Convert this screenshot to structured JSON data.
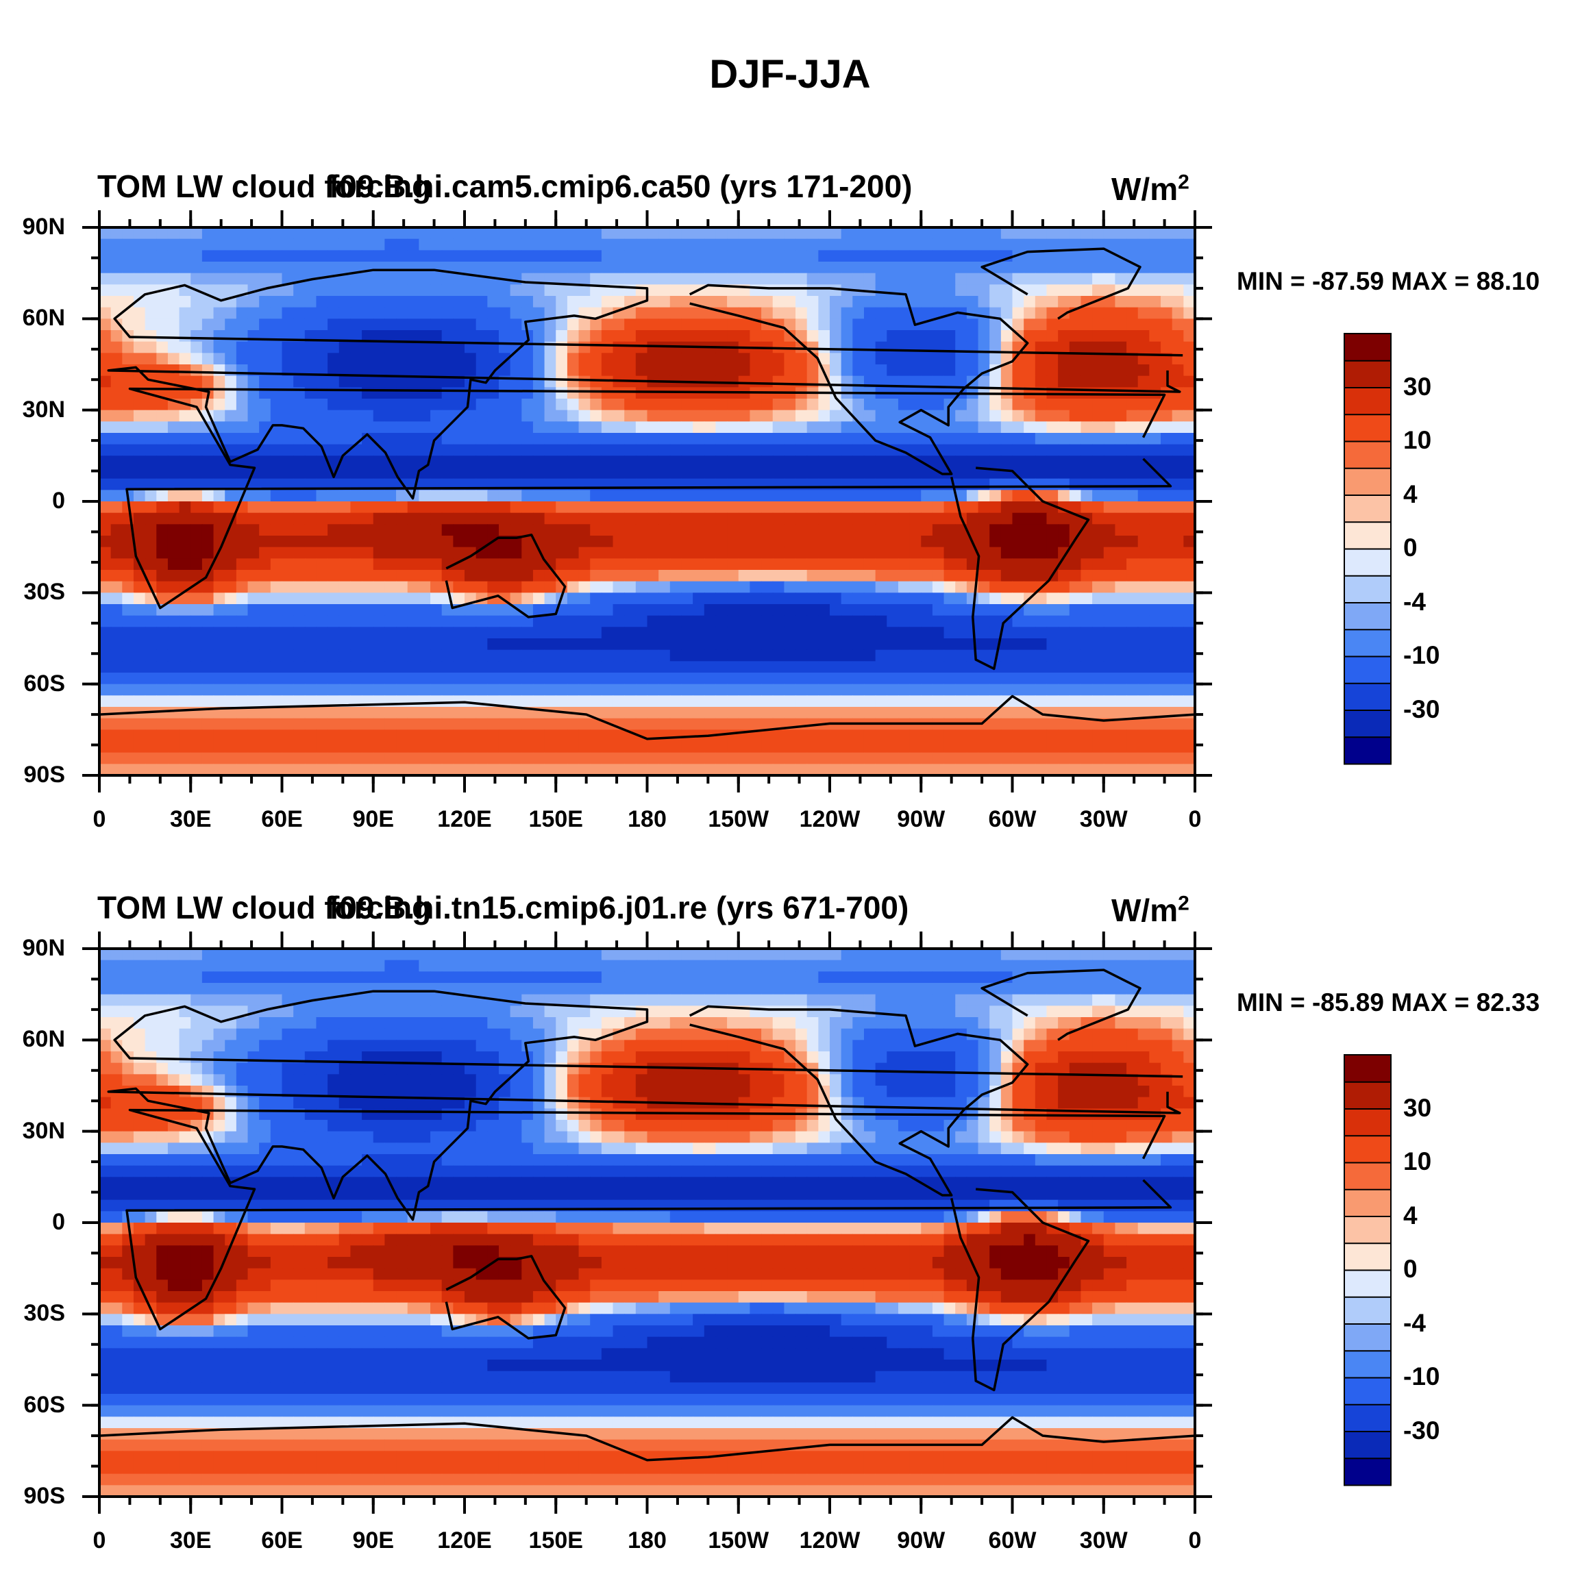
{
  "figure": {
    "main_title": "DJF-JJA"
  },
  "chart_data": [
    {
      "type": "heatmap",
      "title_left": "TOM LW cloud forcing",
      "title_center": "f09.B.hi.cam5.cmip6.ca50 (yrs 171-200)",
      "units_base": "W/m",
      "units_exp": "2",
      "min_value": -87.59,
      "max_value": 88.1,
      "min_label": "MIN = -87.59",
      "max_label": "MAX =  88.10",
      "lat_ticks": [
        "90N",
        "60N",
        "30N",
        "0",
        "30S",
        "60S",
        "90S"
      ],
      "lon_ticks": [
        "0",
        "30E",
        "60E",
        "90E",
        "120E",
        "150E",
        "180",
        "150W",
        "120W",
        "90W",
        "60W",
        "30W",
        "0"
      ],
      "colorbar_labels": [
        "30",
        "10",
        "4",
        "0",
        "-4",
        "-10",
        "-30"
      ]
    },
    {
      "type": "heatmap",
      "title_left": "TOM LW cloud forcing",
      "title_center": "f09.B.hi.tn15.cmip6.j01.re (yrs 671-700)",
      "units_base": "W/m",
      "units_exp": "2",
      "min_value": -85.89,
      "max_value": 82.33,
      "min_label": "MIN = -85.89",
      "max_label": "MAX =  82.33",
      "lat_ticks": [
        "90N",
        "60N",
        "30N",
        "0",
        "30S",
        "60S",
        "90S"
      ],
      "lon_ticks": [
        "0",
        "30E",
        "60E",
        "90E",
        "120E",
        "150E",
        "180",
        "150W",
        "120W",
        "90W",
        "60W",
        "30W",
        "0"
      ],
      "colorbar_labels": [
        "30",
        "10",
        "4",
        "0",
        "-4",
        "-10",
        "-30"
      ]
    }
  ],
  "colors": {
    "levels": [
      "#00008c",
      "#0a2ab8",
      "#1644d8",
      "#2a62ee",
      "#4a86f4",
      "#7fa8f6",
      "#b0ccfa",
      "#dde9fd",
      "#fde6d6",
      "#fcc3a6",
      "#f99a70",
      "#f56a3a",
      "#ef4a18",
      "#d9300a",
      "#b01c04",
      "#7d0000"
    ]
  }
}
